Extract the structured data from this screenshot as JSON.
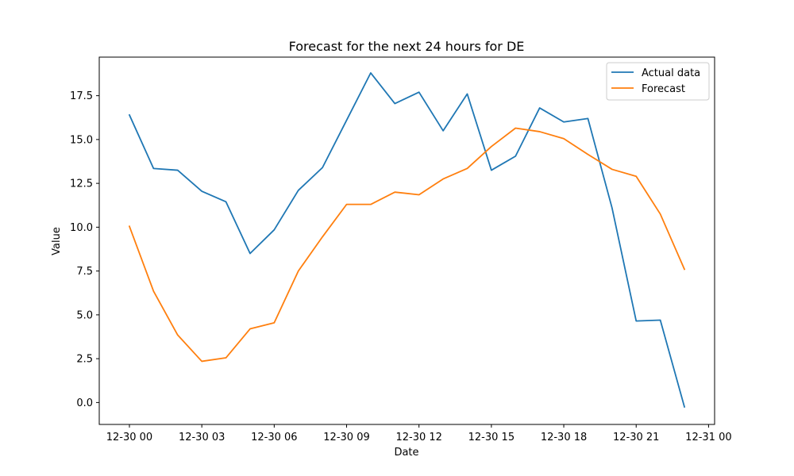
{
  "chart_data": {
    "type": "line",
    "title": "Forecast for the next 24 hours for DE",
    "xlabel": "Date",
    "ylabel": "Value",
    "x": [
      "2023-12-30 00:00",
      "2023-12-30 01:00",
      "2023-12-30 02:00",
      "2023-12-30 03:00",
      "2023-12-30 04:00",
      "2023-12-30 05:00",
      "2023-12-30 06:00",
      "2023-12-30 07:00",
      "2023-12-30 08:00",
      "2023-12-30 09:00",
      "2023-12-30 10:00",
      "2023-12-30 11:00",
      "2023-12-30 12:00",
      "2023-12-30 13:00",
      "2023-12-30 14:00",
      "2023-12-30 15:00",
      "2023-12-30 16:00",
      "2023-12-30 17:00",
      "2023-12-30 18:00",
      "2023-12-30 19:00",
      "2023-12-30 20:00",
      "2023-12-30 21:00",
      "2023-12-30 22:00",
      "2023-12-30 23:00"
    ],
    "xlim": [
      "2023-12-29 22:45",
      "2023-12-31 00:15"
    ],
    "x_ticks": [
      "2023-12-30 00:00",
      "2023-12-30 03:00",
      "2023-12-30 06:00",
      "2023-12-30 09:00",
      "2023-12-30 12:00",
      "2023-12-30 15:00",
      "2023-12-30 18:00",
      "2023-12-30 21:00",
      "2023-12-31 00:00"
    ],
    "x_tick_labels": [
      "12-30 00",
      "12-30 03",
      "12-30 06",
      "12-30 09",
      "12-30 12",
      "12-30 15",
      "12-30 18",
      "12-30 21",
      "12-31 00"
    ],
    "ylim": [
      -1.25,
      19.7
    ],
    "y_ticks": [
      0,
      2.5,
      5,
      7.5,
      10,
      12.5,
      15,
      17.5
    ],
    "y_tick_labels": [
      "0.0",
      "2.5",
      "5.0",
      "7.5",
      "10.0",
      "12.5",
      "15.0",
      "17.5"
    ],
    "grid": false,
    "legend_position": "top-right",
    "series": [
      {
        "name": "Actual data",
        "color": "#1f77b4",
        "values": [
          16.4,
          13.35,
          13.25,
          12.05,
          11.45,
          8.5,
          9.85,
          12.1,
          13.4,
          16.1,
          18.8,
          17.05,
          17.7,
          15.5,
          17.6,
          13.25,
          14.05,
          16.8,
          16.0,
          16.2,
          11.1,
          4.65,
          4.7,
          -0.25
        ]
      },
      {
        "name": "Forecast",
        "color": "#ff7f0e",
        "values": [
          10.05,
          6.35,
          3.85,
          2.35,
          2.55,
          4.2,
          4.55,
          7.5,
          9.45,
          11.3,
          11.3,
          12.0,
          11.85,
          12.75,
          13.35,
          14.6,
          15.65,
          15.45,
          15.05,
          14.15,
          13.3,
          12.9,
          10.75,
          7.6
        ]
      }
    ]
  }
}
